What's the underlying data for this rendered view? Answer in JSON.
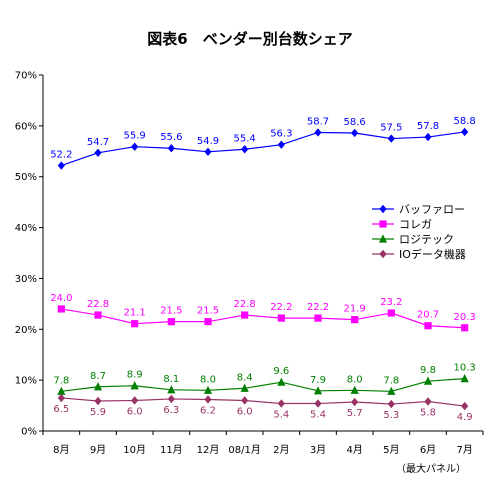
{
  "chart_data": {
    "type": "line",
    "title": "図表6　ベンダー別台数シェア",
    "note": "（最大パネル）",
    "categories": [
      "8月",
      "9月",
      "10月",
      "11月",
      "12月",
      "08/1月",
      "2月",
      "3月",
      "4月",
      "5月",
      "6月",
      "7月"
    ],
    "ylim": [
      0,
      70
    ],
    "yticks": [
      "0%",
      "10%",
      "20%",
      "30%",
      "40%",
      "50%",
      "60%",
      "70%"
    ],
    "legend_position": "right",
    "series": [
      {
        "name": "バッファロー",
        "color": "#0000ff",
        "marker": "diamond",
        "values": [
          52.2,
          54.7,
          55.9,
          55.6,
          54.9,
          55.4,
          56.3,
          58.7,
          58.6,
          57.5,
          57.8,
          58.8
        ],
        "labels": [
          "52.2",
          "54.7",
          "55.9",
          "55.6",
          "54.9",
          "55.4",
          "56.3",
          "58.7",
          "58.6",
          "57.5",
          "57.8",
          "58.8"
        ]
      },
      {
        "name": "コレガ",
        "color": "#ff00ff",
        "marker": "square",
        "values": [
          24.0,
          22.8,
          21.1,
          21.5,
          21.5,
          22.8,
          22.2,
          22.2,
          21.9,
          23.2,
          20.7,
          20.3
        ],
        "labels": [
          "24.0",
          "22.8",
          "21.1",
          "21.5",
          "21.5",
          "22.8",
          "22.2",
          "22.2",
          "21.9",
          "23.2",
          "20.7",
          "20.3"
        ]
      },
      {
        "name": "ロジテック",
        "color": "#008000",
        "marker": "triangle",
        "values": [
          7.8,
          8.7,
          8.9,
          8.1,
          8.0,
          8.4,
          9.6,
          7.9,
          8.0,
          7.8,
          9.8,
          10.3
        ],
        "labels": [
          "7.8",
          "8.7",
          "8.9",
          "8.1",
          "8.0",
          "8.4",
          "9.6",
          "7.9",
          "8.0",
          "7.8",
          "9.8",
          "10.3"
        ]
      },
      {
        "name": "IOデータ機器",
        "color": "#993366",
        "marker": "diamond",
        "values": [
          6.5,
          5.9,
          6.0,
          6.3,
          6.2,
          6.0,
          5.4,
          5.4,
          5.7,
          5.3,
          5.8,
          4.9
        ],
        "labels": [
          "6.5",
          "5.9",
          "6.0",
          "6.3",
          "6.2",
          "6.0",
          "5.4",
          "5.4",
          "5.7",
          "5.3",
          "5.8",
          "4.9"
        ]
      }
    ]
  }
}
